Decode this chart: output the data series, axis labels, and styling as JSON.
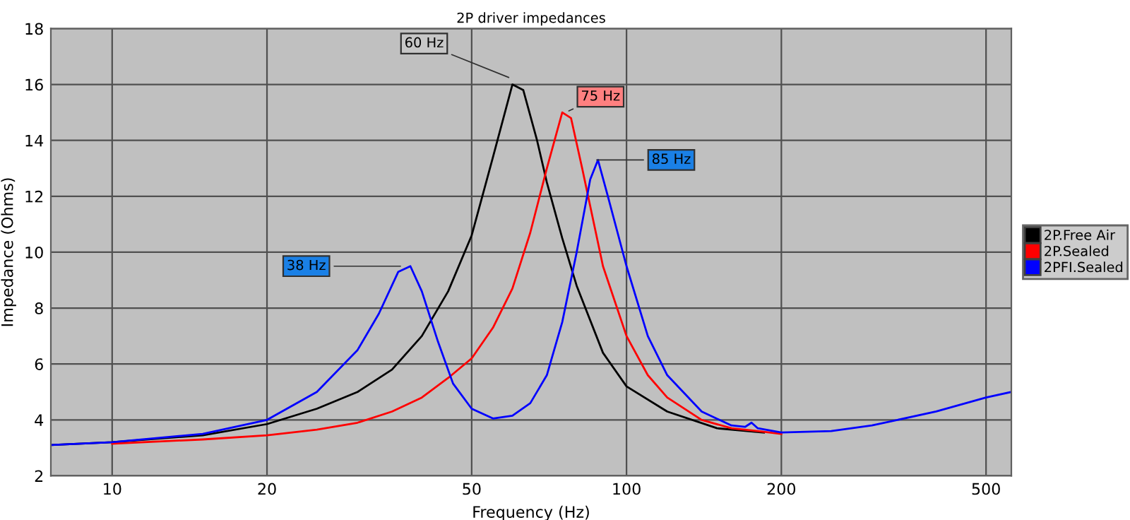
{
  "chart_data": {
    "type": "line",
    "title": "2P driver impedances",
    "xlabel": "Frequency (Hz)",
    "ylabel": "Impedance (Ohms)",
    "log": "x",
    "xlim": [
      7.6,
      560
    ],
    "xticks": [
      10,
      20,
      50,
      100,
      200,
      500
    ],
    "ylim": [
      2,
      18
    ],
    "yticks": [
      2,
      4,
      6,
      8,
      10,
      12,
      14,
      16,
      18
    ],
    "grid": true,
    "legend": "right",
    "marker": "none",
    "line_style": "solid",
    "series": [
      {
        "name": "2P.Free Air",
        "color": "#000000",
        "x": [
          7.6,
          10,
          15,
          20,
          25,
          30,
          35,
          40,
          45,
          50,
          55,
          60,
          63,
          67,
          70,
          75,
          80,
          90,
          100,
          120,
          150,
          185
        ],
        "values": [
          3.1,
          3.2,
          3.45,
          3.85,
          4.4,
          5.0,
          5.8,
          7.0,
          8.6,
          10.6,
          13.4,
          16.0,
          15.8,
          14.0,
          12.5,
          10.5,
          8.8,
          6.4,
          5.2,
          4.3,
          3.7,
          3.55
        ]
      },
      {
        "name": "2P.Sealed",
        "color": "#ff0000",
        "x": [
          10,
          15,
          20,
          25,
          30,
          35,
          40,
          45,
          50,
          55,
          60,
          65,
          70,
          75,
          78,
          82,
          90,
          100,
          110,
          120,
          140,
          160,
          180,
          200
        ],
        "values": [
          3.15,
          3.3,
          3.45,
          3.65,
          3.9,
          4.3,
          4.8,
          5.5,
          6.2,
          7.3,
          8.7,
          10.7,
          13.0,
          15.0,
          14.8,
          13.0,
          9.5,
          7.0,
          5.6,
          4.8,
          4.0,
          3.7,
          3.6,
          3.5
        ]
      },
      {
        "name": "2PFI.Sealed",
        "color": "#0000ff",
        "x": [
          7.6,
          10,
          15,
          20,
          25,
          30,
          33,
          36,
          38,
          40,
          43,
          46,
          50,
          55,
          60,
          65,
          70,
          75,
          80,
          85,
          88,
          92,
          100,
          110,
          120,
          140,
          160,
          170,
          175,
          180,
          200,
          250,
          300,
          400,
          500,
          560
        ],
        "values": [
          3.1,
          3.2,
          3.5,
          4.0,
          5.0,
          6.5,
          7.8,
          9.3,
          9.5,
          8.6,
          6.8,
          5.3,
          4.4,
          4.05,
          4.15,
          4.6,
          5.6,
          7.5,
          10.0,
          12.6,
          13.3,
          12.0,
          9.5,
          7.0,
          5.6,
          4.3,
          3.8,
          3.75,
          3.9,
          3.7,
          3.55,
          3.6,
          3.8,
          4.3,
          4.8,
          5.0
        ]
      }
    ],
    "annotations": [
      {
        "text": "60 Hz",
        "x": 60,
        "y": 16.2
      },
      {
        "text": "75 Hz",
        "x": 76,
        "y": 15.0
      },
      {
        "text": "85 Hz",
        "x": 86,
        "y": 13.3
      },
      {
        "text": "38 Hz",
        "x": 37,
        "y": 9.5
      }
    ]
  }
}
